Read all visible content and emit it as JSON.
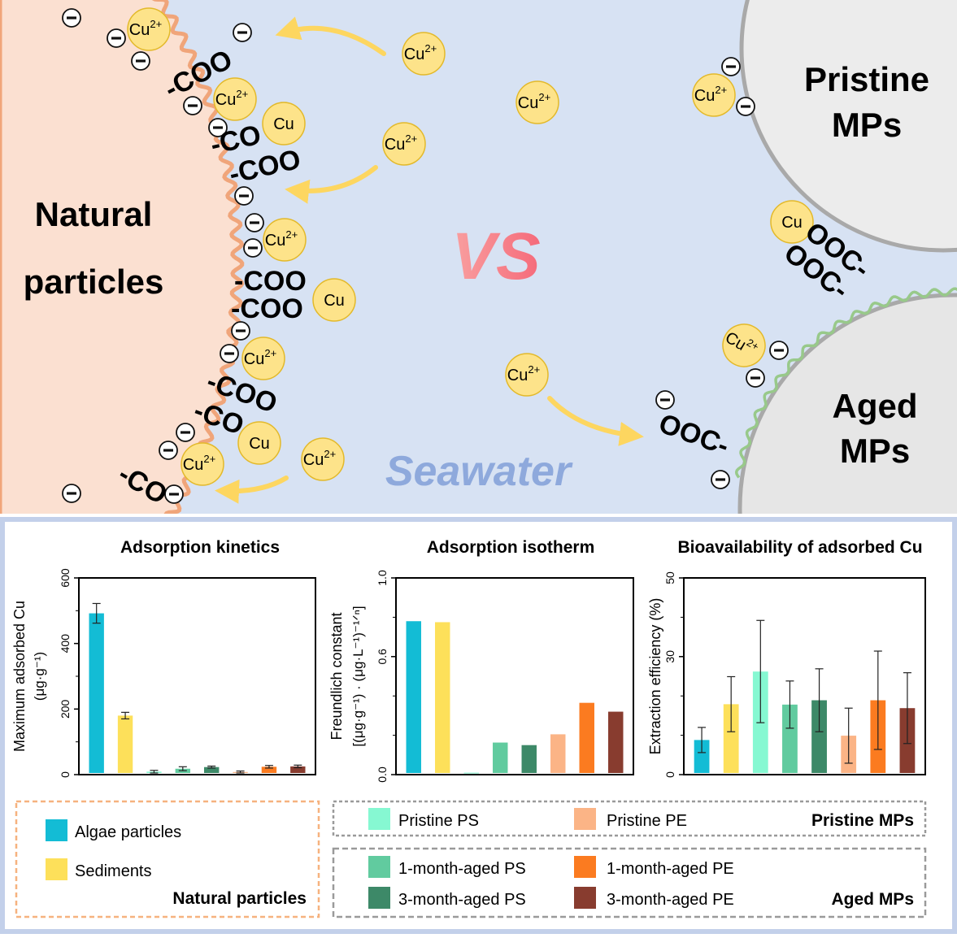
{
  "scheme": {
    "natural_particles": [
      "Natural",
      "particles"
    ],
    "pristine_mps": [
      "Pristine",
      "MPs"
    ],
    "aged_mps": [
      "Aged",
      "MPs"
    ],
    "vs": "VS",
    "seawater": "Seawater",
    "ion_cu2": "Cu",
    "ion_sup": "2+",
    "cu_label": "Cu",
    "coo": "COO",
    "co": "CO",
    "ooc": "OOC",
    "minus": "−",
    "colors": {
      "sea": "#d7e2f3",
      "natural_fill": "#fbe0d1",
      "natural_edge": "#f0a57a",
      "mp_fill": "#ececec",
      "mp_edge": "#a9a9a9",
      "biofilm": "#98c98a",
      "ion_fill": "#fde38a",
      "ion_edge": "#e3b92a",
      "arrow": "#fdd660",
      "vs": "#f7848a",
      "seawater": "#8ea9dc",
      "panel_border": "#c3d0ea"
    }
  },
  "chart_data": [
    {
      "type": "bar",
      "title": "Adsorption kinetics",
      "ylabel": [
        "Maximum adsorbed Cu",
        "(μg·g⁻¹)"
      ],
      "ylim": [
        0,
        600
      ],
      "yticks": [
        "0",
        "200",
        "400",
        "600"
      ],
      "categories": [
        "Algae particles",
        "Sediments",
        "Pristine PS",
        "1-month-aged PS",
        "3-month-aged PS",
        "Pristine PE",
        "1-month-aged PE",
        "3-month-aged PE"
      ],
      "values": [
        492,
        180,
        9,
        18,
        23,
        8,
        24,
        25
      ],
      "errors": [
        30,
        10,
        4,
        6,
        3,
        3,
        4,
        4
      ]
    },
    {
      "type": "bar",
      "title": "Adsorption isotherm",
      "ylabel": [
        "Freundlich constant",
        "[(μg·g⁻¹) · (μg·L⁻¹)⁻¹ᐟⁿ]"
      ],
      "ylim": [
        0,
        1.0
      ],
      "yticks": [
        "0.0",
        "0.6",
        "1.0"
      ],
      "categories": [
        "Algae particles",
        "Sediments",
        "Pristine PS",
        "1-month-aged PS",
        "3-month-aged PS",
        "Pristine PE",
        "1-month-aged PE",
        "3-month-aged PE"
      ],
      "values": [
        0.78,
        0.775,
        0.01,
        0.163,
        0.15,
        0.205,
        0.365,
        0.32
      ],
      "errors": [
        0,
        0,
        0,
        0,
        0,
        0,
        0,
        0
      ]
    },
    {
      "type": "bar",
      "title": "Bioavailability of adsorbed Cu",
      "ylabel": [
        "Extraction  efficiency (%)",
        ""
      ],
      "ylim": [
        0,
        50
      ],
      "yticks": [
        "0",
        "30",
        "50"
      ],
      "categories": [
        "Algae particles",
        "Sediments",
        "Pristine PS",
        "1-month-aged PS",
        "3-month-aged PS",
        "Pristine PE",
        "1-month-aged PE",
        "3-month-aged PE"
      ],
      "values": [
        8.8,
        17.9,
        26.2,
        17.8,
        18.9,
        9.9,
        18.9,
        16.9
      ],
      "errors": [
        3.2,
        7.0,
        13.0,
        6.0,
        8.0,
        7.0,
        12.5,
        9.0
      ]
    }
  ],
  "legend": {
    "natural": {
      "title": "Natural particles",
      "items": [
        {
          "label": "Algae particles",
          "color": "#13bcd5"
        },
        {
          "label": "Sediments",
          "color": "#fde05a"
        }
      ]
    },
    "pristine": {
      "title": "Pristine MPs",
      "items": [
        {
          "label": "Pristine PS",
          "color": "#86f8d2"
        },
        {
          "label": "Pristine PE",
          "color": "#fbb486"
        }
      ]
    },
    "aged": {
      "title": "Aged MPs",
      "items": [
        {
          "label": "1-month-aged PS",
          "color": "#61cb9f"
        },
        {
          "label": "1-month-aged PE",
          "color": "#fb7b20"
        },
        {
          "label": "3-month-aged PS",
          "color": "#3d8968"
        },
        {
          "label": "3-month-aged PE",
          "color": "#883c2f"
        }
      ]
    }
  },
  "bar_colors": [
    "#13bcd5",
    "#fde05a",
    "#86f8d2",
    "#61cb9f",
    "#3d8968",
    "#fbb486",
    "#fb7b20",
    "#883c2f"
  ]
}
